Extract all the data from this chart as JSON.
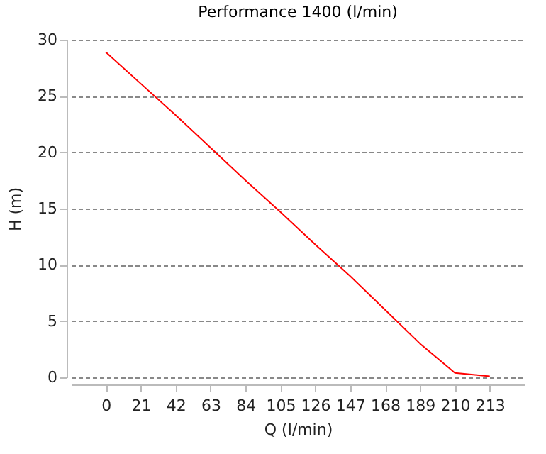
{
  "chart_data": {
    "type": "line",
    "title": "Performance 1400 (l/min)",
    "xlabel": "Q (l/min)",
    "ylabel": "H (m)",
    "categories": [
      "0",
      "21",
      "42",
      "63",
      "84",
      "105",
      "126",
      "147",
      "168",
      "189",
      "210",
      "213"
    ],
    "series": [
      {
        "color": "#ff0000",
        "values": [
          28.9,
          26.1,
          23.3,
          20.4,
          17.5,
          14.7,
          11.8,
          9.0,
          6.0,
          3.0,
          0.4,
          0.1
        ]
      }
    ],
    "ylim": [
      0,
      30
    ],
    "yticks": [
      0,
      5,
      10,
      15,
      20,
      25,
      30
    ],
    "grid": "y"
  }
}
